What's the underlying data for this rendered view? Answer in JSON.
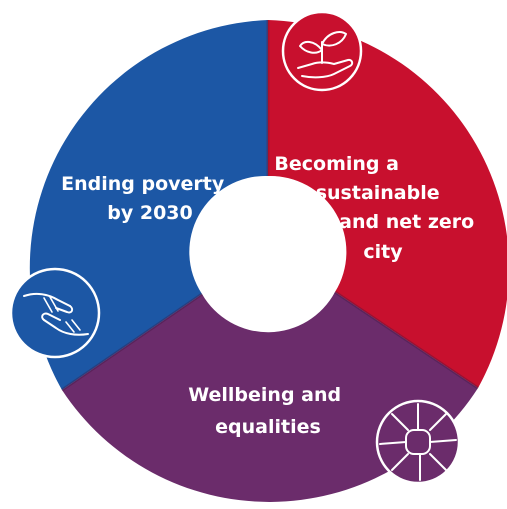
{
  "segments": [
    {
      "id": "poverty",
      "label_lines": [
        "Ending poverty",
        "by 2030"
      ],
      "color": "#1c57a5",
      "icon": "helping-hands-icon"
    },
    {
      "id": "sustainable",
      "label_lines": [
        "Becoming a",
        "sustainable",
        "and net zero",
        "city"
      ],
      "color": "#c8102e",
      "icon": "plant-in-hand-icon"
    },
    {
      "id": "wellbeing",
      "label_lines": [
        "Wellbeing and",
        "equalities"
      ],
      "color": "#6b2c6b",
      "icon": "united-hands-icon"
    }
  ]
}
